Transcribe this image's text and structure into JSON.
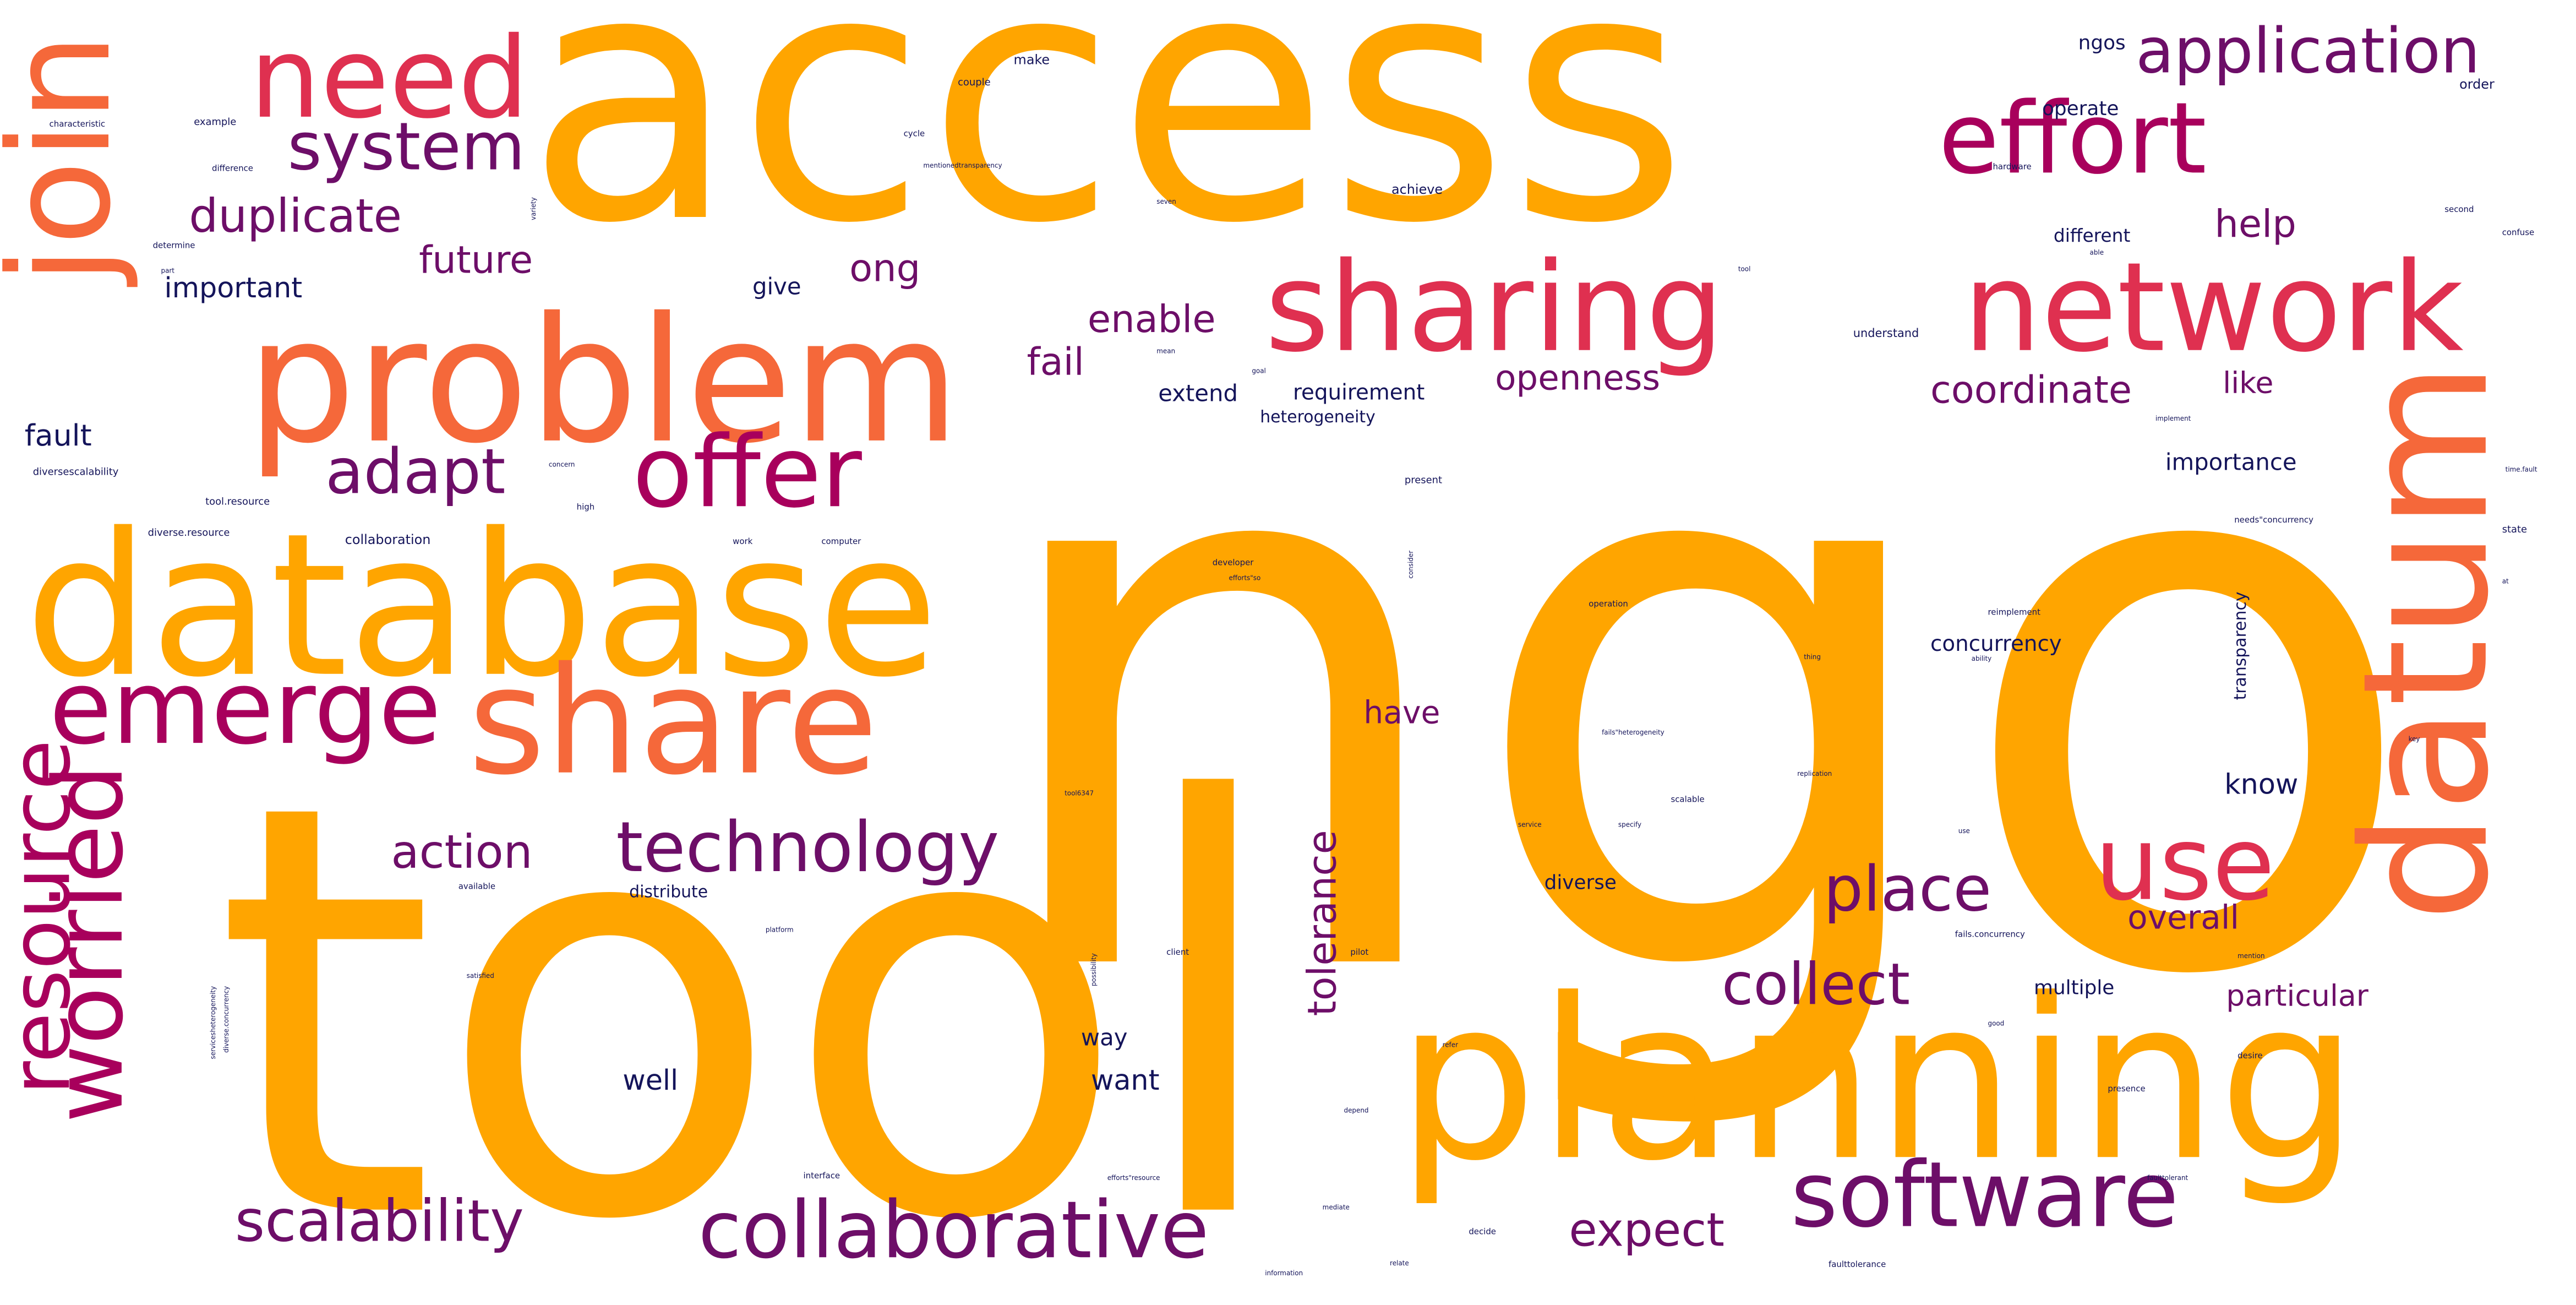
{
  "palette": {
    "orange": "#ffa500",
    "coral": "#f5683a",
    "crimson": "#df3050",
    "magenta": "#a8005c",
    "purple": "#6d0e68",
    "navy": "#14145a"
  },
  "words": [
    {
      "text": "ngo",
      "color": "orange"
    },
    {
      "text": "tool",
      "color": "orange"
    },
    {
      "text": "access",
      "color": "orange"
    },
    {
      "text": "planning",
      "color": "orange"
    },
    {
      "text": "database",
      "color": "orange"
    },
    {
      "text": "problem",
      "color": "coral"
    },
    {
      "text": "datum",
      "color": "coral"
    },
    {
      "text": "share",
      "color": "coral"
    },
    {
      "text": "join",
      "color": "coral"
    },
    {
      "text": "sharing",
      "color": "crimson"
    },
    {
      "text": "network",
      "color": "crimson"
    },
    {
      "text": "need",
      "color": "crimson"
    },
    {
      "text": "use",
      "color": "crimson"
    },
    {
      "text": "effort",
      "color": "magenta"
    },
    {
      "text": "offer",
      "color": "magenta"
    },
    {
      "text": "emerge",
      "color": "magenta"
    },
    {
      "text": "worried",
      "color": "magenta"
    },
    {
      "text": "resource",
      "color": "magenta"
    },
    {
      "text": "software",
      "color": "purple"
    },
    {
      "text": "collaborative",
      "color": "purple"
    },
    {
      "text": "technology",
      "color": "purple"
    },
    {
      "text": "place",
      "color": "purple"
    },
    {
      "text": "collect",
      "color": "purple"
    },
    {
      "text": "scalability",
      "color": "purple"
    },
    {
      "text": "application",
      "color": "purple"
    },
    {
      "text": "system",
      "color": "purple"
    },
    {
      "text": "adapt",
      "color": "purple"
    },
    {
      "text": "action",
      "color": "purple"
    },
    {
      "text": "duplicate",
      "color": "purple"
    },
    {
      "text": "expect",
      "color": "purple"
    },
    {
      "text": "coordinate",
      "color": "purple"
    },
    {
      "text": "tolerance",
      "color": "purple"
    },
    {
      "text": "enable",
      "color": "purple"
    },
    {
      "text": "future",
      "color": "purple"
    },
    {
      "text": "ong",
      "color": "purple"
    },
    {
      "text": "help",
      "color": "purple"
    },
    {
      "text": "fail",
      "color": "purple"
    },
    {
      "text": "openness",
      "color": "purple"
    },
    {
      "text": "like",
      "color": "purple"
    },
    {
      "text": "overall",
      "color": "purple"
    },
    {
      "text": "particular",
      "color": "purple"
    },
    {
      "text": "have",
      "color": "purple"
    },
    {
      "text": "fault",
      "color": "navy"
    },
    {
      "text": "important",
      "color": "navy"
    },
    {
      "text": "know",
      "color": "navy"
    },
    {
      "text": "well",
      "color": "navy"
    },
    {
      "text": "want",
      "color": "navy"
    },
    {
      "text": "way",
      "color": "navy"
    },
    {
      "text": "give",
      "color": "navy"
    },
    {
      "text": "extend",
      "color": "navy"
    },
    {
      "text": "requirement",
      "color": "navy"
    },
    {
      "text": "concurrency",
      "color": "navy"
    },
    {
      "text": "multiple",
      "color": "navy"
    },
    {
      "text": "diverse",
      "color": "navy"
    },
    {
      "text": "distribute",
      "color": "navy"
    },
    {
      "text": "importance",
      "color": "navy"
    },
    {
      "text": "operate",
      "color": "navy"
    },
    {
      "text": "different",
      "color": "navy"
    },
    {
      "text": "ngos",
      "color": "navy"
    },
    {
      "text": "transparency",
      "color": "navy"
    },
    {
      "text": "heterogeneity",
      "color": "navy"
    },
    {
      "text": "achieve",
      "color": "navy"
    },
    {
      "text": "understand",
      "color": "navy"
    },
    {
      "text": "make",
      "color": "navy"
    },
    {
      "text": "order",
      "color": "navy"
    },
    {
      "text": "couple",
      "color": "navy"
    },
    {
      "text": "collaboration",
      "color": "navy"
    },
    {
      "text": "tool.resource",
      "color": "navy"
    },
    {
      "text": "diversescalability",
      "color": "navy"
    },
    {
      "text": "diverse.resource",
      "color": "navy"
    },
    {
      "text": "example",
      "color": "navy"
    },
    {
      "text": "characteristic",
      "color": "navy"
    },
    {
      "text": "difference",
      "color": "navy"
    },
    {
      "text": "determine",
      "color": "navy"
    },
    {
      "text": "part",
      "color": "navy"
    },
    {
      "text": "cycle",
      "color": "navy"
    },
    {
      "text": "mentionedtransparency",
      "color": "navy"
    },
    {
      "text": "seven",
      "color": "navy"
    },
    {
      "text": "variety",
      "color": "navy"
    },
    {
      "text": "hardware",
      "color": "navy"
    },
    {
      "text": "second",
      "color": "navy"
    },
    {
      "text": "confuse",
      "color": "navy"
    },
    {
      "text": "able",
      "color": "navy"
    },
    {
      "text": "tool",
      "color": "navy"
    },
    {
      "text": "mean",
      "color": "navy"
    },
    {
      "text": "goal",
      "color": "navy"
    },
    {
      "text": "implement",
      "color": "navy"
    },
    {
      "text": "concern",
      "color": "navy"
    },
    {
      "text": "time.fault",
      "color": "navy"
    },
    {
      "text": "high",
      "color": "navy"
    },
    {
      "text": "present",
      "color": "navy"
    },
    {
      "text": "work",
      "color": "navy"
    },
    {
      "text": "computer",
      "color": "navy"
    },
    {
      "text": "needs\"concurrency",
      "color": "navy"
    },
    {
      "text": "state",
      "color": "navy"
    },
    {
      "text": "developer",
      "color": "navy"
    },
    {
      "text": "consider",
      "color": "navy"
    },
    {
      "text": "efforts\"so",
      "color": "navy"
    },
    {
      "text": "operation",
      "color": "navy"
    },
    {
      "text": "reimplement",
      "color": "navy"
    },
    {
      "text": "ability",
      "color": "navy"
    },
    {
      "text": "thing",
      "color": "navy"
    },
    {
      "text": "fails\"heterogeneity",
      "color": "navy"
    },
    {
      "text": "key",
      "color": "navy"
    },
    {
      "text": "replication",
      "color": "navy"
    },
    {
      "text": "scalable",
      "color": "navy"
    },
    {
      "text": "tool6347",
      "color": "navy"
    },
    {
      "text": "service",
      "color": "navy"
    },
    {
      "text": "specify",
      "color": "navy"
    },
    {
      "text": "use",
      "color": "navy"
    },
    {
      "text": "available",
      "color": "navy"
    },
    {
      "text": "platform",
      "color": "navy"
    },
    {
      "text": "possibility",
      "color": "navy"
    },
    {
      "text": "client",
      "color": "navy"
    },
    {
      "text": "pilot",
      "color": "navy"
    },
    {
      "text": "fails.concurrency",
      "color": "navy"
    },
    {
      "text": "mention",
      "color": "navy"
    },
    {
      "text": "good",
      "color": "navy"
    },
    {
      "text": "satisfied",
      "color": "navy"
    },
    {
      "text": "servicesheterogeneity",
      "color": "navy"
    },
    {
      "text": "diverse.concurrency",
      "color": "navy"
    },
    {
      "text": "desire",
      "color": "navy"
    },
    {
      "text": "refer",
      "color": "navy"
    },
    {
      "text": "depend",
      "color": "navy"
    },
    {
      "text": "presence",
      "color": "navy"
    },
    {
      "text": "interface",
      "color": "navy"
    },
    {
      "text": "efforts\"resource",
      "color": "navy"
    },
    {
      "text": "mediate",
      "color": "navy"
    },
    {
      "text": "faulttolerant",
      "color": "navy"
    },
    {
      "text": "decide",
      "color": "navy"
    },
    {
      "text": "relate",
      "color": "navy"
    },
    {
      "text": "faulttolerance",
      "color": "navy"
    },
    {
      "text": "information",
      "color": "navy"
    },
    {
      "text": "at",
      "color": "navy"
    }
  ]
}
